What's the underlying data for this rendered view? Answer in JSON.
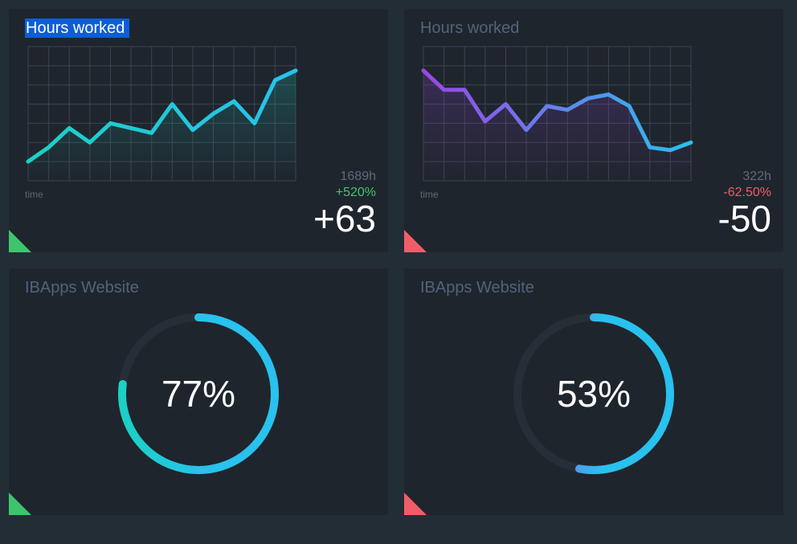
{
  "cards": [
    {
      "title": "Hours worked",
      "time_label": "time",
      "total": "1689h",
      "change_percent": "+520%",
      "change_value": "+63",
      "trend": "up",
      "chart_data": {
        "type": "line",
        "values": [
          2,
          3.5,
          5.5,
          4,
          6,
          5.5,
          5,
          8,
          5.3,
          7,
          8.3,
          6,
          10.5,
          11.5
        ],
        "ylim": [
          0,
          14
        ],
        "grid": true,
        "gradient": [
          "#1bd1c4",
          "#29c1ee"
        ]
      }
    },
    {
      "title": "Hours worked",
      "time_label": "time",
      "total": "322h",
      "change_percent": "-62.50%",
      "change_value": "-50",
      "trend": "down",
      "chart_data": {
        "type": "line",
        "values": [
          11.5,
          9.5,
          9.5,
          6.2,
          8,
          5.3,
          7.8,
          7.4,
          8.6,
          9,
          7.8,
          3.5,
          3.2,
          4
        ],
        "ylim": [
          0,
          14
        ],
        "grid": true,
        "gradient": [
          "#9b46e6",
          "#29c1ee"
        ]
      }
    },
    {
      "title": "IBApps Website",
      "value": "77%",
      "trend": "up",
      "percent": 77,
      "gradient": [
        "#1bd1c4",
        "#29c1ee"
      ]
    },
    {
      "title": "IBApps Website",
      "value": "53%",
      "trend": "down",
      "percent": 53,
      "gradient": [
        "#9b46e6",
        "#29c1ee"
      ]
    }
  ]
}
